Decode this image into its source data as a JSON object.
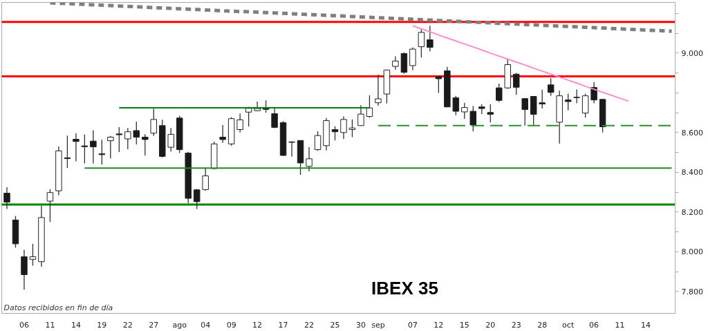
{
  "chart_data": {
    "type": "candlestick",
    "title": "IBEX 35",
    "annotations": [
      "Datos recibidos en fin de día"
    ],
    "categories": [
      null,
      null,
      "06",
      null,
      null,
      "11",
      null,
      null,
      "14",
      null,
      null,
      "19",
      null,
      null,
      "22",
      null,
      null,
      "27",
      null,
      null,
      "ago",
      null,
      null,
      "04",
      null,
      null,
      "09",
      null,
      null,
      "12",
      null,
      null,
      "17",
      null,
      null,
      "22",
      null,
      null,
      "25",
      null,
      null,
      "30",
      null,
      "sep",
      null,
      null,
      null,
      "07",
      null,
      null,
      "12",
      null,
      null,
      "15",
      null,
      null,
      "20",
      null,
      null,
      "23",
      null,
      null,
      "28",
      null,
      null,
      "oct",
      null,
      null,
      "06",
      null,
      null,
      "11",
      null,
      null,
      "14",
      null,
      null,
      null
    ],
    "ohlc": [
      [
        8295,
        8325,
        8215,
        8250
      ],
      [
        8160,
        8180,
        8020,
        8040
      ],
      [
        7975,
        8010,
        7810,
        7885
      ],
      [
        7962,
        8040,
        7930,
        7975
      ],
      [
        7950,
        8232,
        7925,
        8172
      ],
      [
        8255,
        8315,
        8150,
        8298
      ],
      [
        8307,
        8530,
        8285,
        8508
      ],
      [
        8473,
        8585,
        8422,
        8469
      ],
      [
        8566,
        8597,
        8455,
        8555
      ],
      [
        8533,
        8590,
        8445,
        8529
      ],
      [
        8557,
        8612,
        8445,
        8528
      ],
      [
        8493,
        8564,
        8439,
        8489
      ],
      [
        8559,
        8583,
        8470,
        8577
      ],
      [
        8593,
        8627,
        8502,
        8589
      ],
      [
        8568,
        8623,
        8516,
        8604
      ],
      [
        8610,
        8655,
        8540,
        8577
      ],
      [
        8577,
        8592,
        8485,
        8565
      ],
      [
        8597,
        8720,
        8583,
        8666
      ],
      [
        8635,
        8665,
        8475,
        8480
      ],
      [
        8526,
        8623,
        8505,
        8591
      ],
      [
        8673,
        8685,
        8497,
        8514
      ],
      [
        8497,
        8503,
        8245,
        8269
      ],
      [
        8312,
        8316,
        8215,
        8252
      ],
      [
        8313,
        8424,
        8307,
        8382
      ],
      [
        8419,
        8554,
        8417,
        8543
      ],
      [
        8577,
        8638,
        8548,
        8565
      ],
      [
        8543,
        8678,
        8534,
        8670
      ],
      [
        8615,
        8696,
        8600,
        8664
      ],
      [
        8703,
        8730,
        8631,
        8722
      ],
      [
        8710,
        8756,
        8707,
        8721
      ],
      [
        8721,
        8762,
        8700,
        8717
      ],
      [
        8695,
        8721,
        8622,
        8626
      ],
      [
        8650,
        8658,
        8482,
        8485
      ],
      [
        8553,
        8556,
        8479,
        8551
      ],
      [
        8560,
        8562,
        8387,
        8447
      ],
      [
        8430,
        8526,
        8405,
        8468
      ],
      [
        8514,
        8606,
        8508,
        8585
      ],
      [
        8534,
        8673,
        8510,
        8660
      ],
      [
        8615,
        8632,
        8560,
        8604
      ],
      [
        8600,
        8681,
        8568,
        8666
      ],
      [
        8615,
        8666,
        8577,
        8623
      ],
      [
        8635,
        8738,
        8633,
        8693
      ],
      [
        8681,
        8787,
        8675,
        8724
      ],
      [
        8750,
        8892,
        8735,
        8770
      ],
      [
        8794,
        8917,
        8747,
        8915
      ],
      [
        8933,
        8984,
        8917,
        8960
      ],
      [
        8998,
        9003,
        8897,
        8903
      ],
      [
        8937,
        9029,
        8914,
        9020
      ],
      [
        9032,
        9119,
        8978,
        9104
      ],
      [
        9067,
        9138,
        9009,
        9029
      ],
      [
        8881,
        8885,
        8799,
        8871
      ],
      [
        8911,
        8931,
        8727,
        8729
      ],
      [
        8775,
        8785,
        8687,
        8707
      ],
      [
        8704,
        8750,
        8669,
        8726
      ],
      [
        8707,
        8733,
        8606,
        8638
      ],
      [
        8729,
        8742,
        8693,
        8721
      ],
      [
        8701,
        8742,
        8652,
        8692
      ],
      [
        8825,
        8846,
        8754,
        8762
      ],
      [
        8825,
        8972,
        8819,
        8942
      ],
      [
        8894,
        8900,
        8790,
        8828
      ],
      [
        8771,
        8773,
        8635,
        8716
      ],
      [
        8782,
        8784,
        8637,
        8692
      ],
      [
        8750,
        8816,
        8721,
        8744
      ],
      [
        8840,
        8873,
        8785,
        8802
      ],
      [
        8652,
        8811,
        8545,
        8785
      ],
      [
        8764,
        8796,
        8712,
        8756
      ],
      [
        8778,
        8817,
        8747,
        8776
      ],
      [
        8698,
        8796,
        8675,
        8785
      ],
      [
        8827,
        8854,
        8747,
        8764
      ],
      [
        8767,
        8769,
        8600,
        8629
      ],
      null,
      null,
      null,
      null,
      null,
      null,
      null,
      null
    ],
    "colors": [
      "#1a1a1a",
      "#1a1a1a",
      "#1a1a1a",
      "#ffffff",
      "#ffffff",
      "#ffffff",
      "#ffffff",
      "#1a1a1a",
      "#1a1a1a",
      "#1a1a1a",
      "#1a1a1a",
      "#1a1a1a",
      "#ffffff",
      "#1a1a1a",
      "#ffffff",
      "#1a1a1a",
      "#1a1a1a",
      "#ffffff",
      "#1a1a1a",
      "#ffffff",
      "#1a1a1a",
      "#1a1a1a",
      "#1a1a1a",
      "#ffffff",
      "#ffffff",
      "#1a1a1a",
      "#ffffff",
      "#ffffff",
      "#ffffff",
      "#ffffff",
      "#1a1a1a",
      "#1a1a1a",
      "#1a1a1a",
      "#1a1a1a",
      "#1a1a1a",
      "#ffffff",
      "#ffffff",
      "#ffffff",
      "#1a1a1a",
      "#ffffff",
      "#ffffff",
      "#ffffff",
      "#ffffff",
      "#ffffff",
      "#ffffff",
      "#ffffff",
      "#1a1a1a",
      "#ffffff",
      "#ffffff",
      "#1a1a1a",
      "#1a1a1a",
      "#1a1a1a",
      "#1a1a1a",
      "#ffffff",
      "#1a1a1a",
      "#1a1a1a",
      "#1a1a1a",
      "#1a1a1a",
      "#ffffff",
      "#1a1a1a",
      "#1a1a1a",
      "#1a1a1a",
      "#1a1a1a",
      "#1a1a1a",
      "#ffffff",
      "#1a1a1a",
      "#1a1a1a",
      "#ffffff",
      "#1a1a1a",
      "#1a1a1a",
      null,
      null,
      null,
      null,
      null,
      null,
      null,
      null
    ],
    "series": [
      {
        "type": "line",
        "color": "#7f7f7f",
        "line_style": "dotted",
        "values": [
          null,
          null,
          null,
          null,
          null,
          9253,
          9251,
          9249,
          9247,
          9245,
          9243,
          9241,
          9239,
          9237,
          9235,
          9233,
          9231,
          9229,
          9227,
          9225,
          9223,
          9221,
          9219,
          9217,
          9215,
          9213,
          9211,
          9209,
          9208,
          9206,
          9204,
          9202,
          9200,
          9198,
          9196,
          9194,
          9192,
          9190,
          9188,
          9186,
          9184,
          9182,
          9180,
          9178,
          9176,
          9174,
          9172,
          9170,
          9168,
          9166,
          9164,
          9162,
          9160,
          9158,
          9156,
          9154,
          9152,
          9150,
          9148,
          9146,
          9144,
          9142,
          9140,
          9138,
          9136,
          9134,
          9132,
          9130,
          9128,
          9126,
          9124,
          9122,
          9120,
          9118,
          9116,
          9114,
          9112,
          9110
        ]
      },
      {
        "type": "line",
        "color": "#ff8ccc",
        "values": [
          null,
          null,
          null,
          null,
          null,
          null,
          null,
          null,
          null,
          null,
          null,
          null,
          null,
          null,
          null,
          null,
          null,
          null,
          null,
          null,
          null,
          null,
          null,
          null,
          null,
          null,
          null,
          null,
          null,
          null,
          null,
          null,
          null,
          null,
          null,
          null,
          null,
          null,
          null,
          null,
          null,
          null,
          null,
          null,
          null,
          null,
          null,
          9137,
          9122,
          9107,
          9091,
          9076,
          9061,
          9046,
          9031,
          9016,
          9000,
          8985,
          8970,
          8955,
          8940,
          8924,
          8909,
          8894,
          8879,
          8864,
          8849,
          8833,
          8818,
          8803,
          8788,
          8773,
          8758,
          null,
          null,
          null,
          null,
          null
        ]
      },
      {
        "type": "line",
        "color": "#008000",
        "values": [
          null,
          null,
          null,
          null,
          null,
          null,
          null,
          null,
          null,
          null,
          null,
          null,
          null,
          8725,
          8725,
          8725,
          8725,
          8725,
          8725,
          8725,
          8725,
          8725,
          8725,
          8725,
          8725,
          8725,
          8725,
          8725,
          8725,
          8725,
          8725,
          8725,
          8725,
          8725,
          8725,
          8725,
          8725,
          8725,
          8725,
          8725,
          8725,
          8725,
          8725,
          null,
          null,
          null,
          null,
          null,
          null,
          null,
          null,
          null,
          null,
          null,
          null,
          null,
          null,
          null,
          null,
          null,
          null,
          null,
          null,
          null,
          null,
          null,
          null,
          null,
          null,
          null,
          null,
          null,
          null,
          null,
          null,
          null,
          null,
          null
        ]
      },
      {
        "type": "line",
        "color": "#1e8c1e",
        "values": [
          null,
          null,
          null,
          null,
          null,
          null,
          null,
          null,
          null,
          8421,
          8421,
          8421,
          8421,
          8421,
          8421,
          8421,
          8421,
          8421,
          8421,
          8421,
          8421,
          8421,
          8421,
          8421,
          8421,
          8421,
          8421,
          8421,
          8421,
          8421,
          8421,
          8421,
          8421,
          8421,
          8421,
          8421,
          8421,
          8421,
          8421,
          8421,
          8421,
          8421,
          8421,
          8421,
          8421,
          8421,
          8421,
          8421,
          8421,
          8421,
          8421,
          8421,
          8421,
          8421,
          8421,
          8421,
          8421,
          8421,
          8421,
          8421,
          8421,
          8421,
          8421,
          8421,
          8421,
          8421,
          8421,
          8421,
          8421,
          8421,
          8421,
          8421,
          8421,
          8421,
          8421,
          8421,
          8421,
          8421
        ]
      },
      {
        "type": "line",
        "color": "#2a8f2a",
        "line_style": "dashed",
        "values": [
          null,
          null,
          null,
          null,
          null,
          null,
          null,
          null,
          null,
          null,
          null,
          null,
          null,
          null,
          null,
          null,
          null,
          null,
          null,
          null,
          null,
          null,
          null,
          null,
          null,
          null,
          null,
          null,
          null,
          null,
          null,
          null,
          null,
          null,
          null,
          null,
          null,
          null,
          null,
          null,
          null,
          null,
          null,
          8635,
          8635,
          8635,
          8635,
          8635,
          8635,
          8635,
          8635,
          8635,
          8635,
          8635,
          8635,
          8635,
          8635,
          8635,
          8635,
          8635,
          8635,
          8635,
          8635,
          8635,
          8635,
          8635,
          8635,
          8635,
          8635,
          8635,
          8635,
          8635,
          8635,
          8635,
          8635,
          8635,
          8635,
          8635
        ]
      }
    ],
    "ref_lines": [
      {
        "axis": "y",
        "value": 9157,
        "color": "#ff0000"
      },
      {
        "axis": "y",
        "value": 8883,
        "color": "#ff0000"
      },
      {
        "axis": "y",
        "value": 8238,
        "color": "#008000"
      }
    ],
    "ylim": [
      7690,
      9255
    ],
    "yticks": [
      {
        "value": 7800,
        "label": "7.800"
      },
      {
        "value": 7900,
        "label": null
      },
      {
        "value": 8000,
        "label": "8.000"
      },
      {
        "value": 8100,
        "label": null
      },
      {
        "value": 8200,
        "label": "8.200"
      },
      {
        "value": 8300,
        "label": null
      },
      {
        "value": 8400,
        "label": "8.400"
      },
      {
        "value": 8500,
        "label": null
      },
      {
        "value": 8600,
        "label": "8.600"
      },
      {
        "value": 8700,
        "label": null
      },
      {
        "value": 8800,
        "label": null
      },
      {
        "value": 8900,
        "label": null
      },
      {
        "value": 9000,
        "label": "9.000"
      },
      {
        "value": 9100,
        "label": null
      },
      {
        "value": 9200,
        "label": null
      }
    ]
  }
}
